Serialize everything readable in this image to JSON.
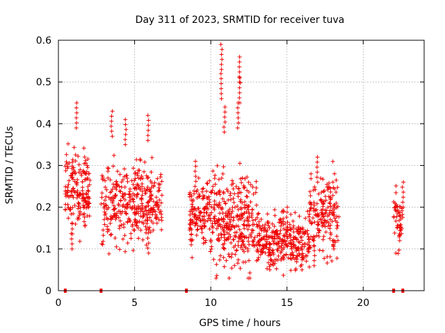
{
  "chart_data": {
    "type": "scatter",
    "title": "Day 311 of 2023, SRMTID for receiver tuva",
    "xlabel": "GPS time / hours",
    "ylabel": "SRMTID / TECUs",
    "xlim": [
      0,
      24
    ],
    "ylim": [
      0,
      0.6
    ],
    "xticks": [
      0,
      5,
      10,
      15,
      20
    ],
    "yticks": [
      0,
      0.1,
      0.2,
      0.3,
      0.4,
      0.5,
      0.6
    ],
    "xtick_labels": [
      "0",
      "5",
      "10",
      "15",
      "20"
    ],
    "ytick_labels": [
      "0",
      "0.1",
      "0.2",
      "0.3",
      "0.4",
      "0.5",
      "0.6"
    ],
    "grid": true,
    "marker": "plus",
    "color": "#ee0000",
    "clusters": [
      {
        "x_start": 0.45,
        "x_end": 2.1,
        "y_center": 0.24,
        "y_spread": 0.05,
        "count": 170,
        "peaks": [
          [
            1.2,
            0.45
          ],
          [
            0.9,
            0.1
          ]
        ]
      },
      {
        "x_start": 2.8,
        "x_end": 6.8,
        "y_center": 0.21,
        "y_spread": 0.05,
        "count": 360,
        "peaks": [
          [
            3.5,
            0.43
          ],
          [
            4.4,
            0.41
          ],
          [
            5.9,
            0.42
          ],
          [
            5.9,
            0.09
          ]
        ]
      },
      {
        "x_start": 8.6,
        "x_end": 9.9,
        "y_center": 0.18,
        "y_spread": 0.04,
        "count": 120,
        "peaks": [
          [
            9.0,
            0.31
          ],
          [
            8.7,
            0.11
          ]
        ]
      },
      {
        "x_start": 9.9,
        "x_end": 13.0,
        "y_center": 0.17,
        "y_spread": 0.06,
        "count": 330,
        "peaks": [
          [
            10.7,
            0.59
          ],
          [
            10.7,
            0.52
          ],
          [
            11.9,
            0.56
          ],
          [
            11.9,
            0.51
          ],
          [
            11.8,
            0.45
          ],
          [
            10.9,
            0.44
          ]
        ]
      },
      {
        "x_start": 13.0,
        "x_end": 16.5,
        "y_center": 0.12,
        "y_spread": 0.035,
        "count": 320,
        "peaks": [
          [
            13.9,
            0.05
          ],
          [
            16.0,
            0.05
          ],
          [
            15.0,
            0.2
          ]
        ]
      },
      {
        "x_start": 16.5,
        "x_end": 18.4,
        "y_center": 0.18,
        "y_spread": 0.05,
        "count": 170,
        "peaks": [
          [
            17.0,
            0.32
          ],
          [
            16.8,
            0.06
          ]
        ]
      },
      {
        "x_start": 22.0,
        "x_end": 22.6,
        "y_center": 0.17,
        "y_spread": 0.04,
        "count": 45,
        "peaks": [
          [
            22.6,
            0.26
          ],
          [
            22.4,
            0.12
          ]
        ]
      }
    ],
    "zero_points_x": [
      0.45,
      2.8,
      8.4,
      22.0,
      22.6
    ]
  }
}
